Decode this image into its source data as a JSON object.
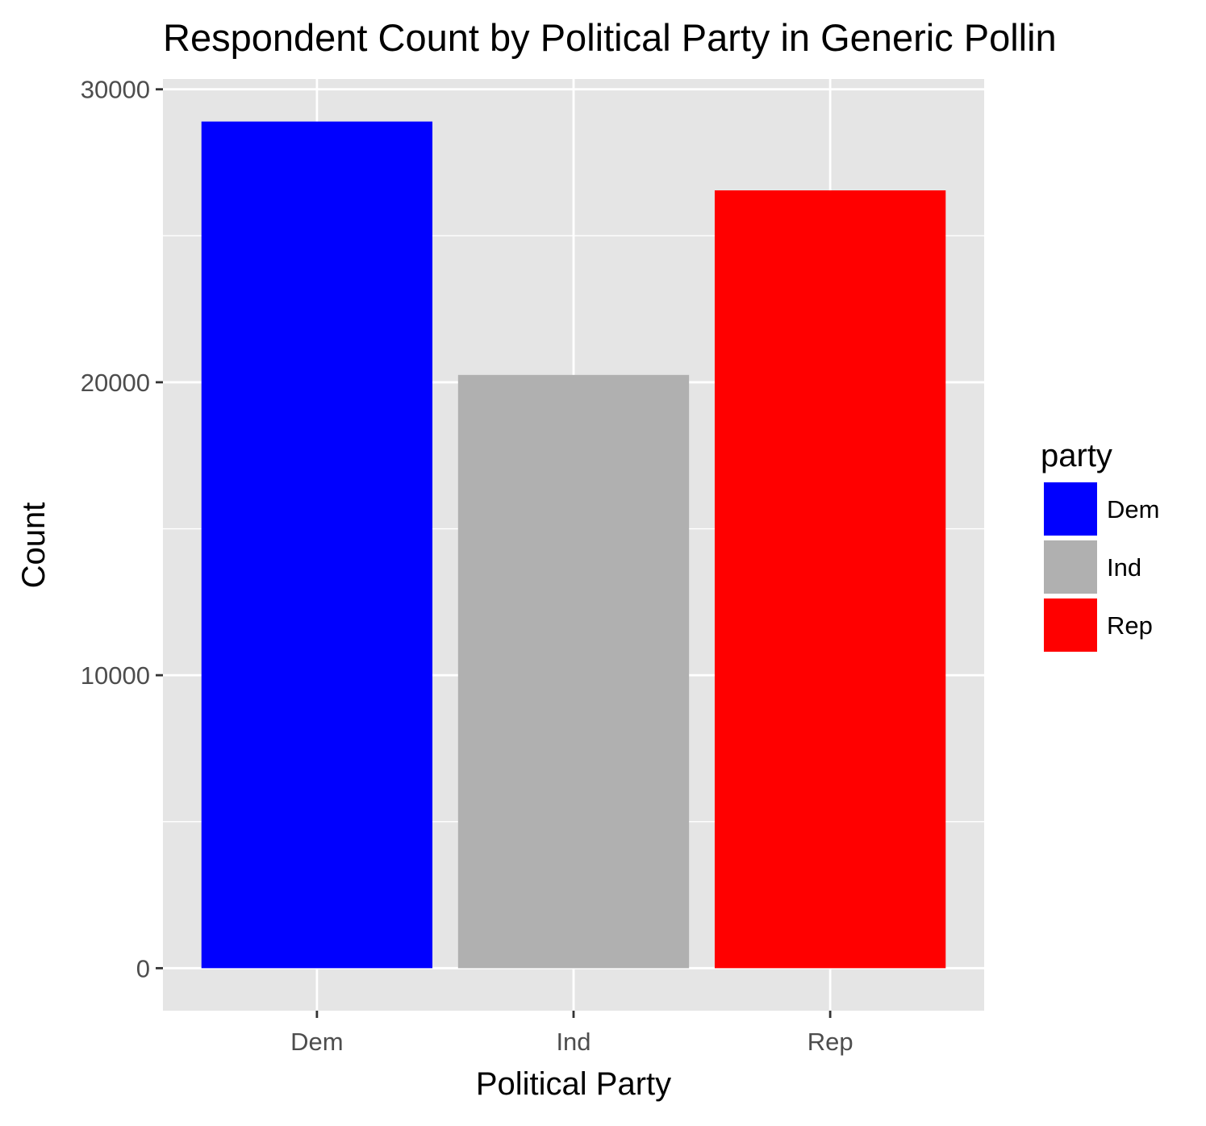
{
  "chart_data": {
    "type": "bar",
    "title": "Respondent Count by Political Party in Generic Pollin",
    "xlabel": "Political Party",
    "ylabel": "Count",
    "categories": [
      "Dem",
      "Ind",
      "Rep"
    ],
    "values": [
      28900,
      20250,
      26550
    ],
    "colors": [
      "#0000ff",
      "#b0b0b0",
      "#ff0000"
    ],
    "ylim": [
      -1450,
      30350
    ],
    "yticks": [
      0,
      10000,
      20000,
      30000
    ],
    "ytick_labels": [
      "0",
      "10000",
      "20000",
      "30000"
    ],
    "grid": true,
    "panel_background": "#e5e5e5",
    "grid_color": "#ffffff",
    "legend": {
      "title": "party",
      "position": "right",
      "entries": [
        "Dem",
        "Ind",
        "Rep"
      ]
    }
  }
}
